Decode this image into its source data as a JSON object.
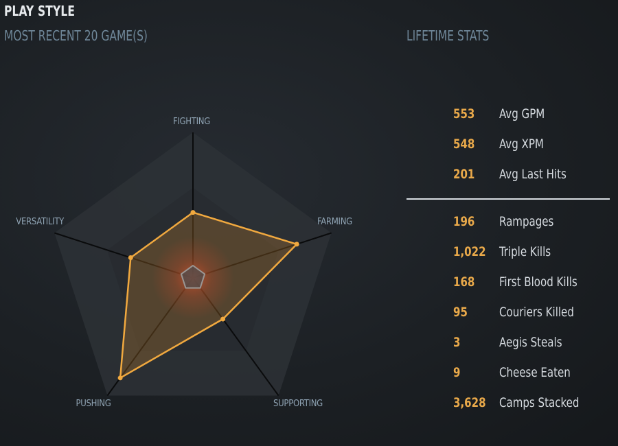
{
  "header": {
    "title": "PLAY STYLE",
    "recent_label": "MOST RECENT 20 GAME(S)",
    "lifetime_label": "LIFETIME STATS"
  },
  "radar": {
    "axes": [
      "FIGHTING",
      "FARMING",
      "SUPPORTING",
      "PUSHING",
      "VERSATILITY"
    ],
    "values": [
      0.45,
      0.75,
      0.35,
      0.85,
      0.45
    ],
    "colors": {
      "polygon_stroke": "#f1a93f",
      "polygon_fill": "#c9842d",
      "glow": "#c8502c",
      "background_pentagon": "#2f3338",
      "axis_line": "#0a0b0c",
      "axis_label": "#8fa3b3"
    }
  },
  "lifetime_stats": {
    "averages": [
      {
        "value": "553",
        "label": "Avg GPM"
      },
      {
        "value": "548",
        "label": "Avg XPM"
      },
      {
        "value": "201",
        "label": "Avg Last Hits"
      }
    ],
    "totals": [
      {
        "value": "196",
        "label": "Rampages"
      },
      {
        "value": "1,022",
        "label": "Triple Kills"
      },
      {
        "value": "168",
        "label": "First Blood Kills"
      },
      {
        "value": "95",
        "label": "Couriers Killed"
      },
      {
        "value": "3",
        "label": "Aegis Steals"
      },
      {
        "value": "9",
        "label": "Cheese Eaten"
      },
      {
        "value": "3,628",
        "label": "Camps Stacked"
      }
    ]
  },
  "colors": {
    "stat_value": "#e9a94a",
    "stat_label": "#d6dbe0",
    "section_header": "#6f8799",
    "title": "#e7eaed"
  }
}
